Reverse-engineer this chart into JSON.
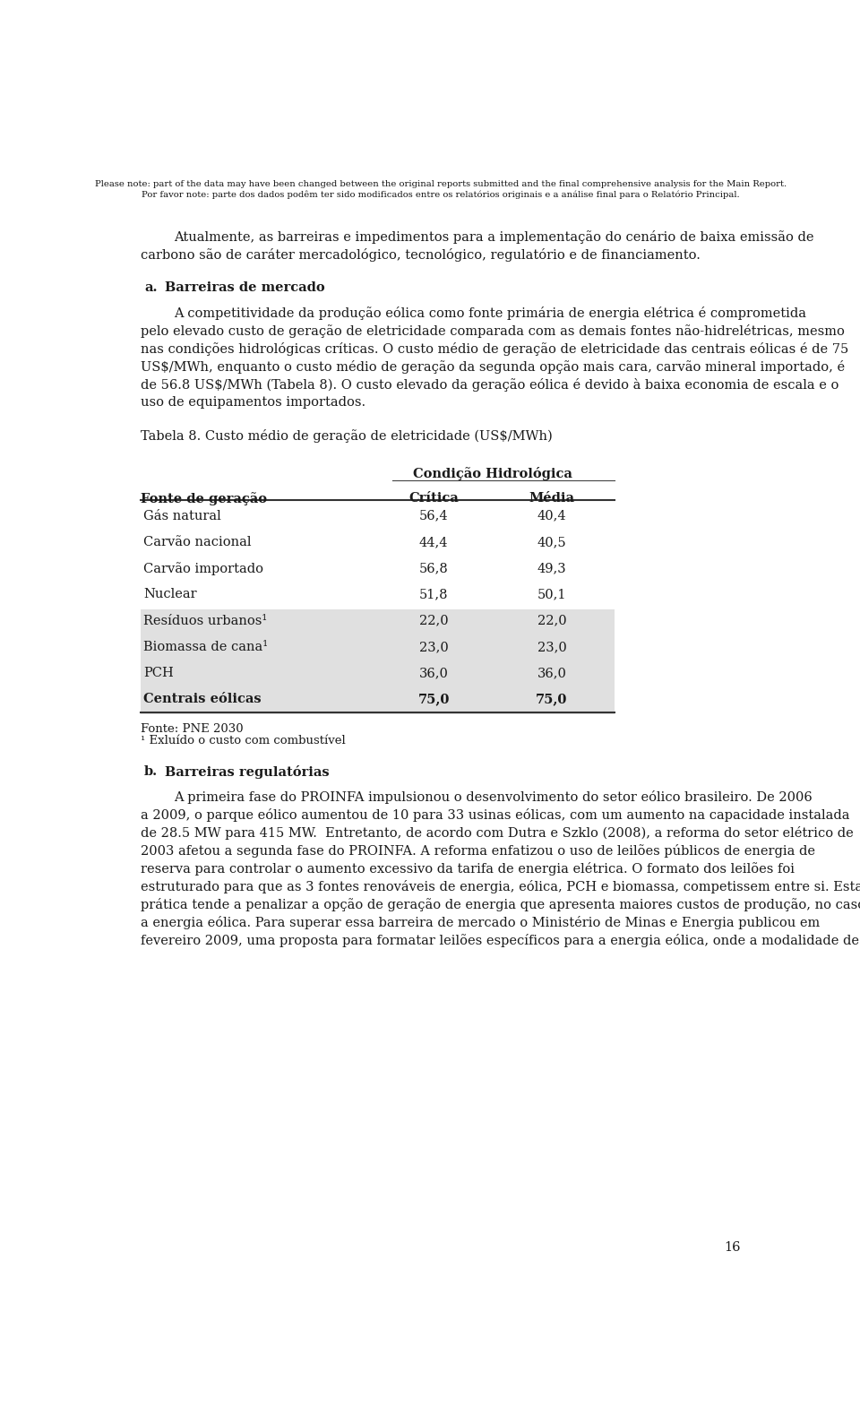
{
  "header_line1": "Please note: part of the data may have been changed between the original reports submitted and the final comprehensive analysis for the Main Report.",
  "header_line2": "Por favor note: parte dos dados podêm ter sido modificados entre os relatórios originais e a análise final para o Relatório Principal.",
  "intro_line1": "Atualmente, as barreiras e impedimentos para a implementação do cenário de baixa emissão de",
  "intro_line2": "carbono são de caráter mercadológico, tecnológico, regulatório e de financiamento.",
  "section_a_label": "a.",
  "section_a_heading": "Barreiras de mercado",
  "para_a_lines": [
    "A competitividade da produção eólica como fonte primária de energia elétrica é comprometida",
    "pelo elevado custo de geração de eletricidade comparada com as demais fontes não-hidrelétricas, mesmo",
    "nas condições hidrológicas críticas. O custo médio de geração de eletricidade das centrais eólicas é de 75",
    "US$/MWh, enquanto o custo médio de geração da segunda opção mais cara, carvão mineral importado, é",
    "de 56.8 US$/MWh (Tabela 8). O custo elevado da geração eólica é devido à baixa economia de escala e o",
    "uso de equipamentos importados."
  ],
  "table_caption": "Tabela 8. Custo médio de geração de eletricidade (US$/MWh)",
  "table_header_main": "Condição Hidrológica",
  "table_col1": "Fonte de geração",
  "table_col2": "Crítica",
  "table_col3": "Média",
  "table_rows": [
    {
      "fonte": "Gás natural",
      "critica": "56,4",
      "media": "40,4",
      "bold": false,
      "shaded": false
    },
    {
      "fonte": "Carvão nacional",
      "critica": "44,4",
      "media": "40,5",
      "bold": false,
      "shaded": false
    },
    {
      "fonte": "Carvão importado",
      "critica": "56,8",
      "media": "49,3",
      "bold": false,
      "shaded": false
    },
    {
      "fonte": "Nuclear",
      "critica": "51,8",
      "media": "50,1",
      "bold": false,
      "shaded": false
    },
    {
      "fonte": "Resíduos urbanos¹",
      "critica": "22,0",
      "media": "22,0",
      "bold": false,
      "shaded": true
    },
    {
      "fonte": "Biomassa de cana¹",
      "critica": "23,0",
      "media": "23,0",
      "bold": false,
      "shaded": true
    },
    {
      "fonte": "PCH",
      "critica": "36,0",
      "media": "36,0",
      "bold": false,
      "shaded": true
    },
    {
      "fonte": "Centrais eólicas",
      "critica": "75,0",
      "media": "75,0",
      "bold": true,
      "shaded": true
    }
  ],
  "table_footnote1": "Fonte: PNE 2030",
  "table_footnote2": "¹ Exluído o custo com combustível",
  "section_b_label": "b.",
  "section_b_heading": "Barreiras regulatórias",
  "para_b_lines": [
    "A primeira fase do PROINFA impulsionou o desenvolvimento do setor eólico brasileiro. De 2006",
    "a 2009, o parque eólico aumentou de 10 para 33 usinas eólicas, com um aumento na capacidade instalada",
    "de 28.5 MW para 415 MW.  Entretanto, de acordo com Dutra e Szklo (2008), a reforma do setor elétrico de",
    "2003 afetou a segunda fase do PROINFA. A reforma enfatizou o uso de leilões públicos de energia de",
    "reserva para controlar o aumento excessivo da tarifa de energia elétrica. O formato dos leilões foi",
    "estruturado para que as 3 fontes renováveis de energia, eólica, PCH e biomassa, competissem entre si. Esta",
    "prática tende a penalizar a opção de geração de energia que apresenta maiores custos de produção, no caso",
    "a energia eólica. Para superar essa barreira de mercado o Ministério de Minas e Energia publicou em",
    "fevereiro 2009, uma proposta para formatar leilões específicos para a energia eólica, onde a modalidade de"
  ],
  "page_number": "16",
  "bg_color": "#ffffff",
  "text_color": "#1a1a1a",
  "shade_color": "#e0e0e0"
}
